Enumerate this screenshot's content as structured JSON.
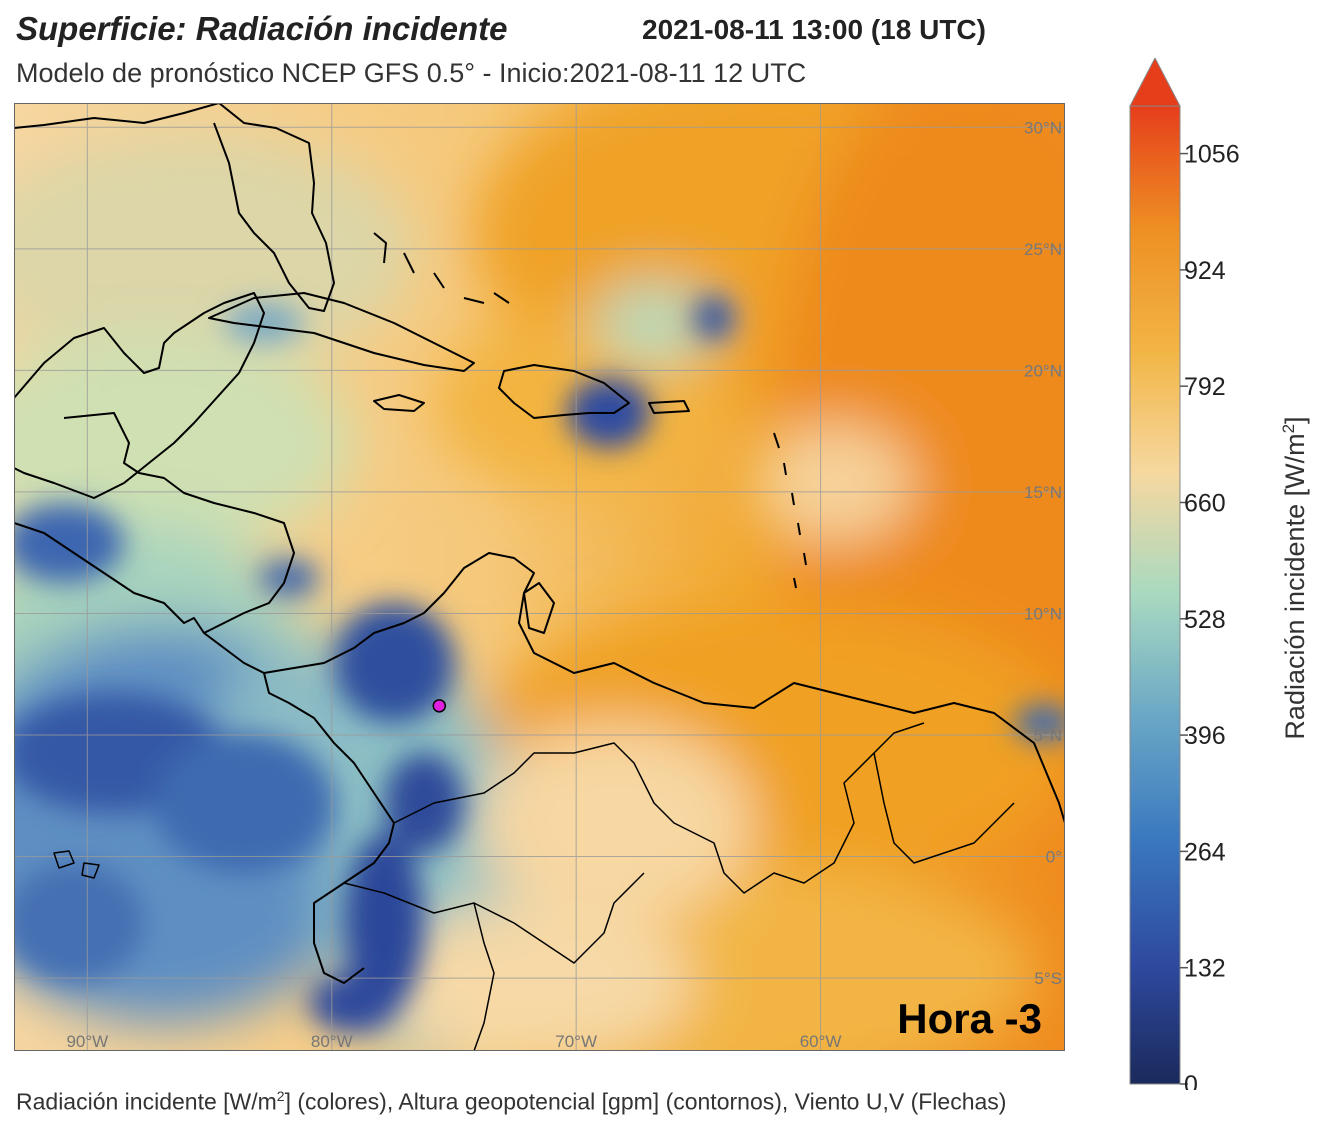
{
  "title": "Superficie: Radiación incidente",
  "datetime": "2021-08-11 13:00 (18 UTC)",
  "subtitle": "Modelo de pronóstico NCEP GFS 0.5° - Inicio:2021-08-11 12 UTC",
  "footer": {
    "part1": "Radiación incidente [W/m",
    "sup": "2",
    "part2": "] (colores), Altura geopotencial [gpm] (contornos), Viento U,V (Flechas)"
  },
  "hour_label": "Hora -3",
  "map": {
    "lon_range": [
      -93,
      -50
    ],
    "lat_range": [
      -8,
      31
    ],
    "lon_ticks": [
      {
        "lon": -90,
        "label": "90°W"
      },
      {
        "lon": -80,
        "label": "80°W"
      },
      {
        "lon": -70,
        "label": "70°W"
      },
      {
        "lon": -60,
        "label": "60°W"
      }
    ],
    "lat_ticks": [
      {
        "lat": 30,
        "label": "30°N"
      },
      {
        "lat": 25,
        "label": "25°N"
      },
      {
        "lat": 20,
        "label": "20°N"
      },
      {
        "lat": 15,
        "label": "15°N"
      },
      {
        "lat": 10,
        "label": "10°N"
      },
      {
        "lat": 5,
        "label": "5°N"
      },
      {
        "lat": 0,
        "label": "0°"
      },
      {
        "lat": -5,
        "label": "5°S"
      }
    ],
    "marker": {
      "lon": -75.6,
      "lat": 6.2,
      "color": "#e020e0"
    }
  },
  "colorbar": {
    "label": "Radiación incidente [W/m",
    "label_sup": "2",
    "label_end": "]",
    "ticks": [
      0,
      132,
      264,
      396,
      528,
      660,
      792,
      924,
      1056
    ],
    "min": 0,
    "max": 1110,
    "colors": [
      "#1b2a5c",
      "#2f4aa0",
      "#3a78bf",
      "#6aa7c6",
      "#a8d9c0",
      "#f6d8a0",
      "#f2b545",
      "#ee8f23",
      "#e63e1b"
    ]
  }
}
